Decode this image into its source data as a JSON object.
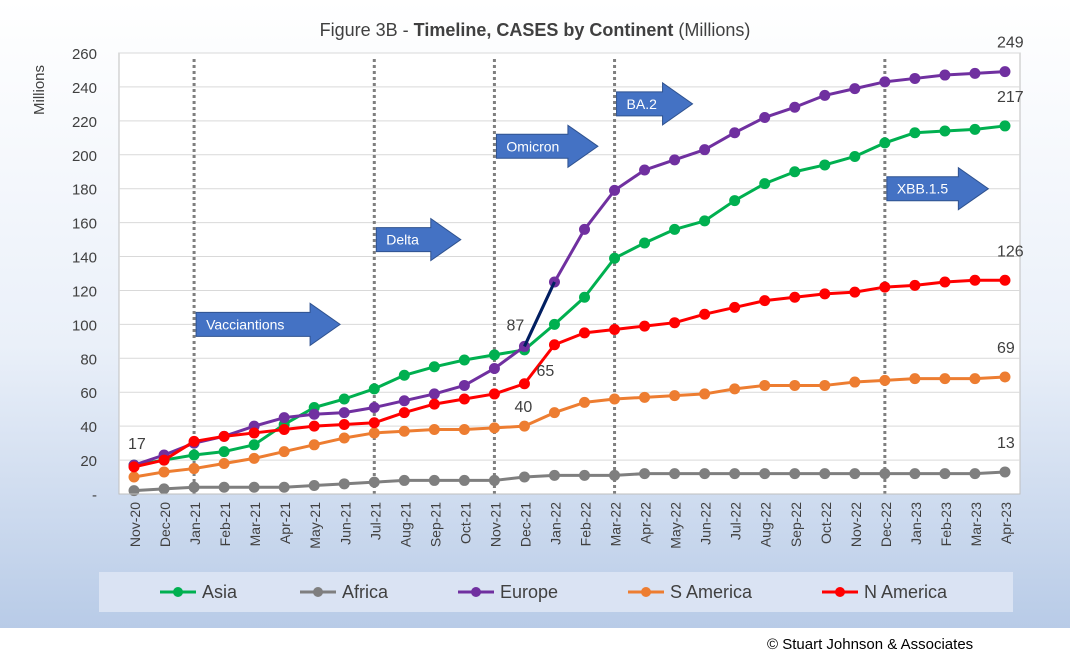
{
  "chart_data": {
    "type": "line",
    "title_prefix": "Figure 3B - ",
    "title_bold": "Timeline, CASES by Continent",
    "title_suffix": " (Millions)",
    "ylabel": "Millions",
    "ylim": [
      0,
      260
    ],
    "yticks": [
      0,
      20,
      40,
      60,
      80,
      100,
      120,
      140,
      160,
      180,
      200,
      220,
      240,
      260
    ],
    "ytick_labels": [
      "-",
      "20",
      "40",
      "60",
      "80",
      "100",
      "120",
      "140",
      "160",
      "180",
      "200",
      "220",
      "240",
      "260"
    ],
    "grid": true,
    "legend_position": "bottom",
    "categories": [
      "Nov-20",
      "Dec-20",
      "Jan-21",
      "Feb-21",
      "Mar-21",
      "Apr-21",
      "May-21",
      "Jun-21",
      "Jul-21",
      "Aug-21",
      "Sep-21",
      "Oct-21",
      "Nov-21",
      "Dec-21",
      "Jan-22",
      "Feb-22",
      "Mar-22",
      "Apr-22",
      "May-22",
      "Jun-22",
      "Jul-22",
      "Aug-22",
      "Sep-22",
      "Oct-22",
      "Nov-22",
      "Dec-22",
      "Jan-23",
      "Feb-23",
      "Mar-23",
      "Apr-23"
    ],
    "series": [
      {
        "name": "Asia",
        "color": "#00b050",
        "values": [
          17,
          20,
          23,
          25,
          29,
          41,
          51,
          56,
          62,
          70,
          75,
          79,
          82,
          85,
          100,
          116,
          139,
          148,
          156,
          161,
          173,
          183,
          190,
          194,
          199,
          207,
          213,
          214,
          215,
          217
        ]
      },
      {
        "name": "Africa",
        "color": "#7f7f7f",
        "values": [
          2,
          3,
          4,
          4,
          4,
          4,
          5,
          6,
          7,
          8,
          8,
          8,
          8,
          10,
          11,
          11,
          11,
          12,
          12,
          12,
          12,
          12,
          12,
          12,
          12,
          12,
          12,
          12,
          12,
          13
        ]
      },
      {
        "name": "Europe",
        "color": "#7030a0",
        "values": [
          17,
          23,
          30,
          34,
          40,
          45,
          47,
          48,
          51,
          55,
          59,
          64,
          74,
          87,
          125,
          156,
          179,
          191,
          197,
          203,
          213,
          222,
          228,
          235,
          239,
          243,
          245,
          247,
          248,
          249
        ]
      },
      {
        "name": "S America",
        "color": "#ed7d31",
        "values": [
          10,
          13,
          15,
          18,
          21,
          25,
          29,
          33,
          36,
          37,
          38,
          38,
          39,
          40,
          48,
          54,
          56,
          57,
          58,
          59,
          62,
          64,
          64,
          64,
          66,
          67,
          68,
          68,
          68,
          69
        ]
      },
      {
        "name": "N America",
        "color": "#ff0000",
        "values": [
          16,
          20,
          31,
          34,
          36,
          38,
          40,
          41,
          42,
          48,
          53,
          56,
          59,
          65,
          88,
          95,
          97,
          99,
          101,
          106,
          110,
          114,
          116,
          118,
          119,
          122,
          123,
          125,
          126,
          126
        ]
      }
    ],
    "connector": {
      "color": "#002060",
      "from": {
        "x": "Dec-21",
        "y": 87
      },
      "to": {
        "x": "Jan-22",
        "y": 125
      }
    },
    "data_labels": [
      {
        "text": "17",
        "x": "Nov-20",
        "y": 17
      },
      {
        "text": "87",
        "x": "Dec-21",
        "y": 87
      },
      {
        "text": "40",
        "x": "Dec-21",
        "y": 40
      },
      {
        "text": "65",
        "x": "Dec-21",
        "y": 65
      },
      {
        "text": "249",
        "x": "Apr-23",
        "y": 249
      },
      {
        "text": "217",
        "x": "Apr-23",
        "y": 217
      },
      {
        "text": "126",
        "x": "Apr-23",
        "y": 126
      },
      {
        "text": "69",
        "x": "Apr-23",
        "y": 69
      },
      {
        "text": "13",
        "x": "Apr-23",
        "y": 13
      }
    ],
    "variant_lines": [
      "Jan-21",
      "Jul-21",
      "Nov-21",
      "Mar-22",
      "Dec-22"
    ],
    "variant_callouts": [
      {
        "text": "Vacciantions",
        "x": "Jan-21",
        "y": 100
      },
      {
        "text": "Delta",
        "x": "Jul-21",
        "y": 150
      },
      {
        "text": "Omicron",
        "x": "Nov-21",
        "y": 205
      },
      {
        "text": "BA.2",
        "x": "Mar-22",
        "y": 230
      },
      {
        "text": "XBB.1.5",
        "x": "Dec-22",
        "y": 180
      }
    ]
  },
  "copyright": "© Stuart Johnson & Associates"
}
